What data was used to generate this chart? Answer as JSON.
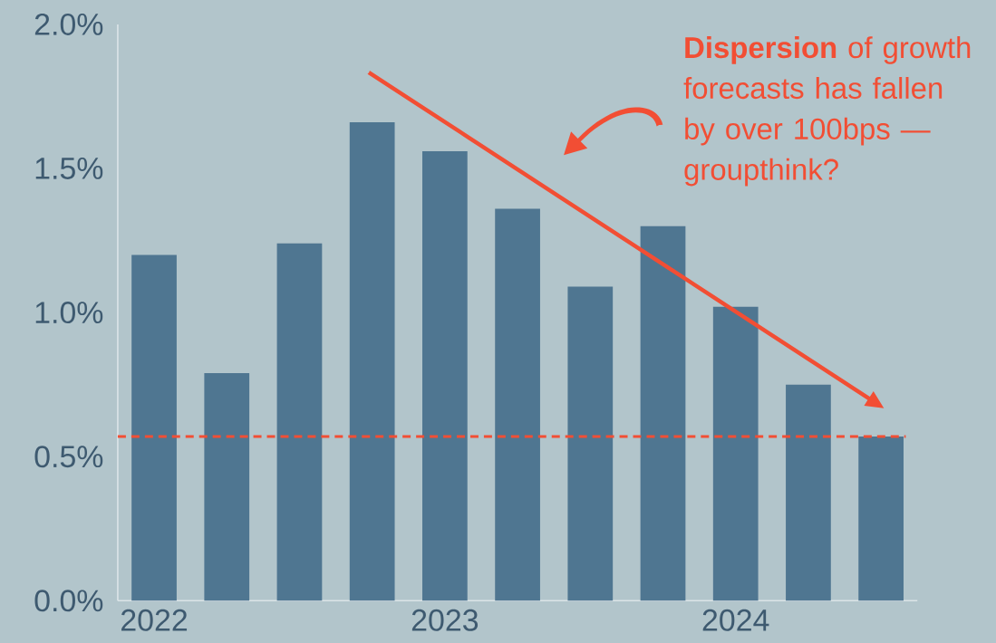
{
  "chart_data": {
    "type": "bar",
    "categories": [
      "2022",
      null,
      null,
      null,
      "2023",
      null,
      null,
      null,
      "2024",
      null,
      null
    ],
    "values": [
      1.2,
      0.79,
      1.24,
      1.66,
      1.56,
      1.36,
      1.09,
      1.3,
      1.02,
      0.75,
      0.57
    ],
    "color": "#4f7691",
    "ylim": [
      0,
      2
    ],
    "yticks": [
      {
        "value": 0,
        "label": "0.0%"
      },
      {
        "value": 0.5,
        "label": "0.5%"
      },
      {
        "value": 1,
        "label": "1.0%"
      },
      {
        "value": 1.5,
        "label": "1.5%"
      },
      {
        "value": 2,
        "label": "2.0%"
      }
    ],
    "ref_lines": [
      {
        "axis": "y",
        "value": 0.57,
        "color": "#f24e34",
        "line_style": "dashed"
      }
    ],
    "annotations": [
      "**Dispersion** of growth forecasts has fallen by over 100bps — groupthink?"
    ]
  }
}
